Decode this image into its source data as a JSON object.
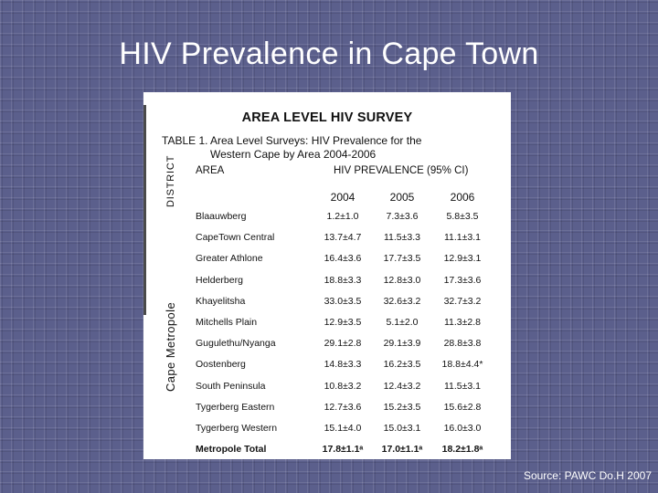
{
  "slide": {
    "title": "HIV Prevalence in Cape Town",
    "source": "Source: PAWC Do.H 2007"
  },
  "figure": {
    "heading": "AREA LEVEL HIV SURVEY",
    "caption_label": "TABLE 1.",
    "caption_line1": "Area Level Surveys: HIV Prevalence for the",
    "caption_line2": "Western Cape by Area 2004-2006",
    "district_label": "DISTRICT",
    "metro_label": "Cape Metropole",
    "col_area": "AREA",
    "col_hiv": "HIV PREVALENCE (95% CI)",
    "years": [
      "2004",
      "2005",
      "2006"
    ],
    "rows": [
      {
        "area": "Blaauwberg",
        "v2004": "1.2±1.0",
        "v2005": "7.3±3.6",
        "v2006": "5.8±3.5"
      },
      {
        "area": "CapeTown Central",
        "v2004": "13.7±4.7",
        "v2005": "11.5±3.3",
        "v2006": "11.1±3.1"
      },
      {
        "area": "Greater Athlone",
        "v2004": "16.4±3.6",
        "v2005": "17.7±3.5",
        "v2006": "12.9±3.1"
      },
      {
        "area": "Helderberg",
        "v2004": "18.8±3.3",
        "v2005": "12.8±3.0",
        "v2006": "17.3±3.6"
      },
      {
        "area": "Khayelitsha",
        "v2004": "33.0±3.5",
        "v2005": "32.6±3.2",
        "v2006": "32.7±3.2"
      },
      {
        "area": "Mitchells Plain",
        "v2004": "12.9±3.5",
        "v2005": "5.1±2.0",
        "v2006": "11.3±2.8"
      },
      {
        "area": "Gugulethu/Nyanga",
        "v2004": "29.1±2.8",
        "v2005": "29.1±3.9",
        "v2006": "28.8±3.8"
      },
      {
        "area": "Oostenberg",
        "v2004": "14.8±3.3",
        "v2005": "16.2±3.5",
        "v2006": "18.8±4.4*"
      },
      {
        "area": "South Peninsula",
        "v2004": "10.8±3.2",
        "v2005": "12.4±3.2",
        "v2006": "11.5±3.1"
      },
      {
        "area": "Tygerberg Eastern",
        "v2004": "12.7±3.6",
        "v2005": "15.2±3.5",
        "v2006": "15.6±2.8"
      },
      {
        "area": "Tygerberg Western",
        "v2004": "15.1±4.0",
        "v2005": "15.0±3.1",
        "v2006": "16.0±3.0"
      },
      {
        "area": "Metropole Total",
        "v2004": "17.8±1.1ᵃ",
        "v2005": "17.0±1.1ᵃ",
        "v2006": "18.2±1.8ᵃ"
      }
    ]
  }
}
